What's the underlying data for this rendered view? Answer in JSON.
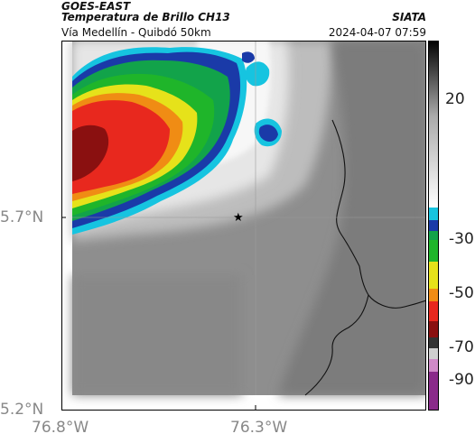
{
  "header": {
    "source": "GOES-EAST",
    "product": "Temperatura de Brillo CH13",
    "org": "SIATA",
    "route": "Vía Medellín - Quibdó 50km",
    "datetime": "2024-04-07 07:59"
  },
  "axes": {
    "lat_labels": [
      "5.7°N",
      "5.2°N"
    ],
    "lon_labels": [
      "76.8°W",
      "76.3°W"
    ]
  },
  "colorbar": {
    "ticks": [
      "20",
      "-30",
      "-50",
      "-70",
      "-90"
    ]
  },
  "colors": {
    "ground": "#8c8c8c",
    "cloud_warm": "#f2f2f2",
    "cyan": "#16c4e0",
    "blue": "#1a3aa8",
    "green": "#1fb52a",
    "yellow": "#e6e21a",
    "red": "#e8281e",
    "darkred": "#8a1010"
  }
}
